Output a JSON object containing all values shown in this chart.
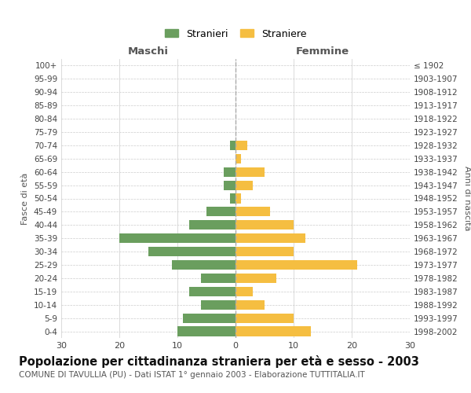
{
  "age_groups": [
    "100+",
    "95-99",
    "90-94",
    "85-89",
    "80-84",
    "75-79",
    "70-74",
    "65-69",
    "60-64",
    "55-59",
    "50-54",
    "45-49",
    "40-44",
    "35-39",
    "30-34",
    "25-29",
    "20-24",
    "15-19",
    "10-14",
    "5-9",
    "0-4"
  ],
  "birth_years": [
    "≤ 1902",
    "1903-1907",
    "1908-1912",
    "1913-1917",
    "1918-1922",
    "1923-1927",
    "1928-1932",
    "1933-1937",
    "1938-1942",
    "1943-1947",
    "1948-1952",
    "1953-1957",
    "1958-1962",
    "1963-1967",
    "1968-1972",
    "1973-1977",
    "1978-1982",
    "1983-1987",
    "1988-1992",
    "1993-1997",
    "1998-2002"
  ],
  "maschi": [
    0,
    0,
    0,
    0,
    0,
    0,
    1,
    0,
    2,
    2,
    1,
    5,
    8,
    20,
    15,
    11,
    6,
    8,
    6,
    9,
    10
  ],
  "femmine": [
    0,
    0,
    0,
    0,
    0,
    0,
    2,
    1,
    5,
    3,
    1,
    6,
    10,
    12,
    10,
    21,
    7,
    3,
    5,
    10,
    13
  ],
  "male_color": "#6a9e5e",
  "female_color": "#f5be41",
  "grid_color": "#cccccc",
  "center_line_color": "#aaaaaa",
  "bg_color": "#ffffff",
  "title": "Popolazione per cittadinanza straniera per età e sesso - 2003",
  "subtitle": "COMUNE DI TAVULLIA (PU) - Dati ISTAT 1° gennaio 2003 - Elaborazione TUTTITALIA.IT",
  "left_label": "Maschi",
  "right_label": "Femmine",
  "ylabel_left": "Fasce di età",
  "ylabel_right": "Anni di nascita",
  "legend_maschi": "Stranieri",
  "legend_femmine": "Straniere",
  "xlim": 30,
  "title_fontsize": 10.5,
  "subtitle_fontsize": 7.5
}
